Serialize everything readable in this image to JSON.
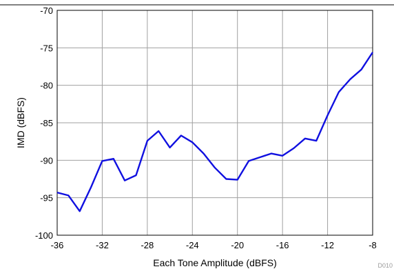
{
  "chart_data": {
    "type": "line",
    "xlabel": "Each Tone Amplitude (dBFS)",
    "ylabel": "IMD (dBFS)",
    "xlim": [
      -36,
      -8
    ],
    "ylim": [
      -100,
      -70
    ],
    "x_ticks": [
      -36,
      -32,
      -28,
      -24,
      -20,
      -16,
      -12,
      -8
    ],
    "y_ticks": [
      -70,
      -75,
      -80,
      -85,
      -90,
      -95,
      -100
    ],
    "grid": true,
    "legend": "none",
    "figure_code": "D010",
    "series": [
      {
        "color": "#1010e0",
        "points": [
          [
            -36,
            -94.3
          ],
          [
            -35,
            -94.7
          ],
          [
            -34,
            -96.8
          ],
          [
            -33,
            -93.6
          ],
          [
            -32,
            -90.1
          ],
          [
            -31,
            -89.8
          ],
          [
            -30,
            -92.7
          ],
          [
            -29,
            -92.0
          ],
          [
            -28,
            -87.4
          ],
          [
            -27,
            -86.1
          ],
          [
            -26,
            -88.3
          ],
          [
            -25,
            -86.7
          ],
          [
            -24,
            -87.6
          ],
          [
            -23,
            -89.1
          ],
          [
            -22,
            -91.0
          ],
          [
            -21,
            -92.5
          ],
          [
            -20,
            -92.6
          ],
          [
            -19,
            -90.1
          ],
          [
            -18,
            -89.6
          ],
          [
            -17,
            -89.1
          ],
          [
            -16,
            -89.4
          ],
          [
            -15,
            -88.4
          ],
          [
            -14,
            -87.1
          ],
          [
            -13,
            -87.4
          ],
          [
            -12,
            -84.0
          ],
          [
            -11,
            -80.9
          ],
          [
            -10,
            -79.2
          ],
          [
            -9,
            -77.9
          ],
          [
            -8,
            -75.6
          ]
        ]
      }
    ]
  }
}
